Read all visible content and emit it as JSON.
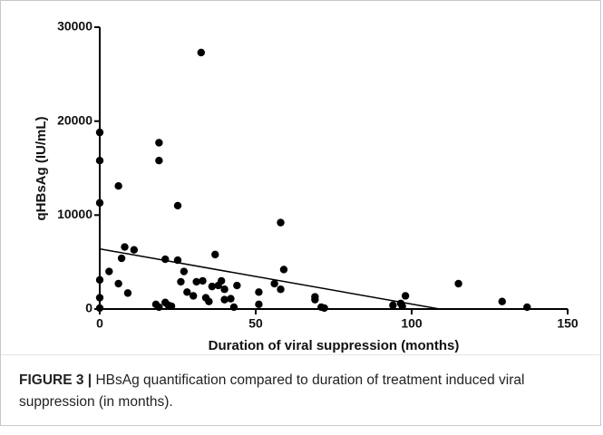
{
  "chart_data": {
    "type": "scatter",
    "xlabel": "Duration of viral suppression (months)",
    "ylabel": "qHBsAg (IU/mL)",
    "xlim": [
      0,
      150
    ],
    "xticks": [
      0,
      50,
      100,
      150
    ],
    "ylim": [
      0,
      30000
    ],
    "yticks": [
      0,
      10000,
      20000,
      30000
    ],
    "color": "#000000",
    "x": [
      0,
      0,
      0,
      0,
      0,
      0,
      3,
      6,
      6,
      8,
      9,
      11,
      7,
      19,
      19,
      21,
      25,
      25,
      27,
      32.5,
      37,
      58,
      59,
      58,
      56,
      115,
      129,
      137,
      98,
      94,
      97,
      96.5,
      69,
      69,
      71,
      72,
      51,
      51,
      42,
      44,
      43,
      18,
      19,
      21,
      23,
      26,
      28,
      30,
      31,
      33,
      34,
      35,
      36,
      38,
      39,
      40,
      40,
      22
    ],
    "y": [
      18800,
      15800,
      11300,
      3100,
      1200,
      100,
      4000,
      13100,
      2700,
      6600,
      1700,
      6300,
      5400,
      17700,
      15800,
      5300,
      11000,
      5200,
      4000,
      27300,
      5800,
      9200,
      4200,
      2100,
      2700,
      2700,
      800,
      200,
      1400,
      400,
      300,
      600,
      1300,
      1000,
      200,
      100,
      1800,
      500,
      1100,
      2500,
      200,
      500,
      200,
      700,
      300,
      2900,
      1800,
      1400,
      2900,
      3000,
      1200,
      800,
      2400,
      2500,
      3000,
      2100,
      1000,
      400
    ],
    "fit_line": {
      "x": [
        0,
        109
      ],
      "y": [
        6400,
        0
      ]
    }
  },
  "caption": {
    "label": "FIGURE 3 |",
    "text": "HBsAg quantification compared to duration of treatment induced viral suppression (in months)."
  }
}
